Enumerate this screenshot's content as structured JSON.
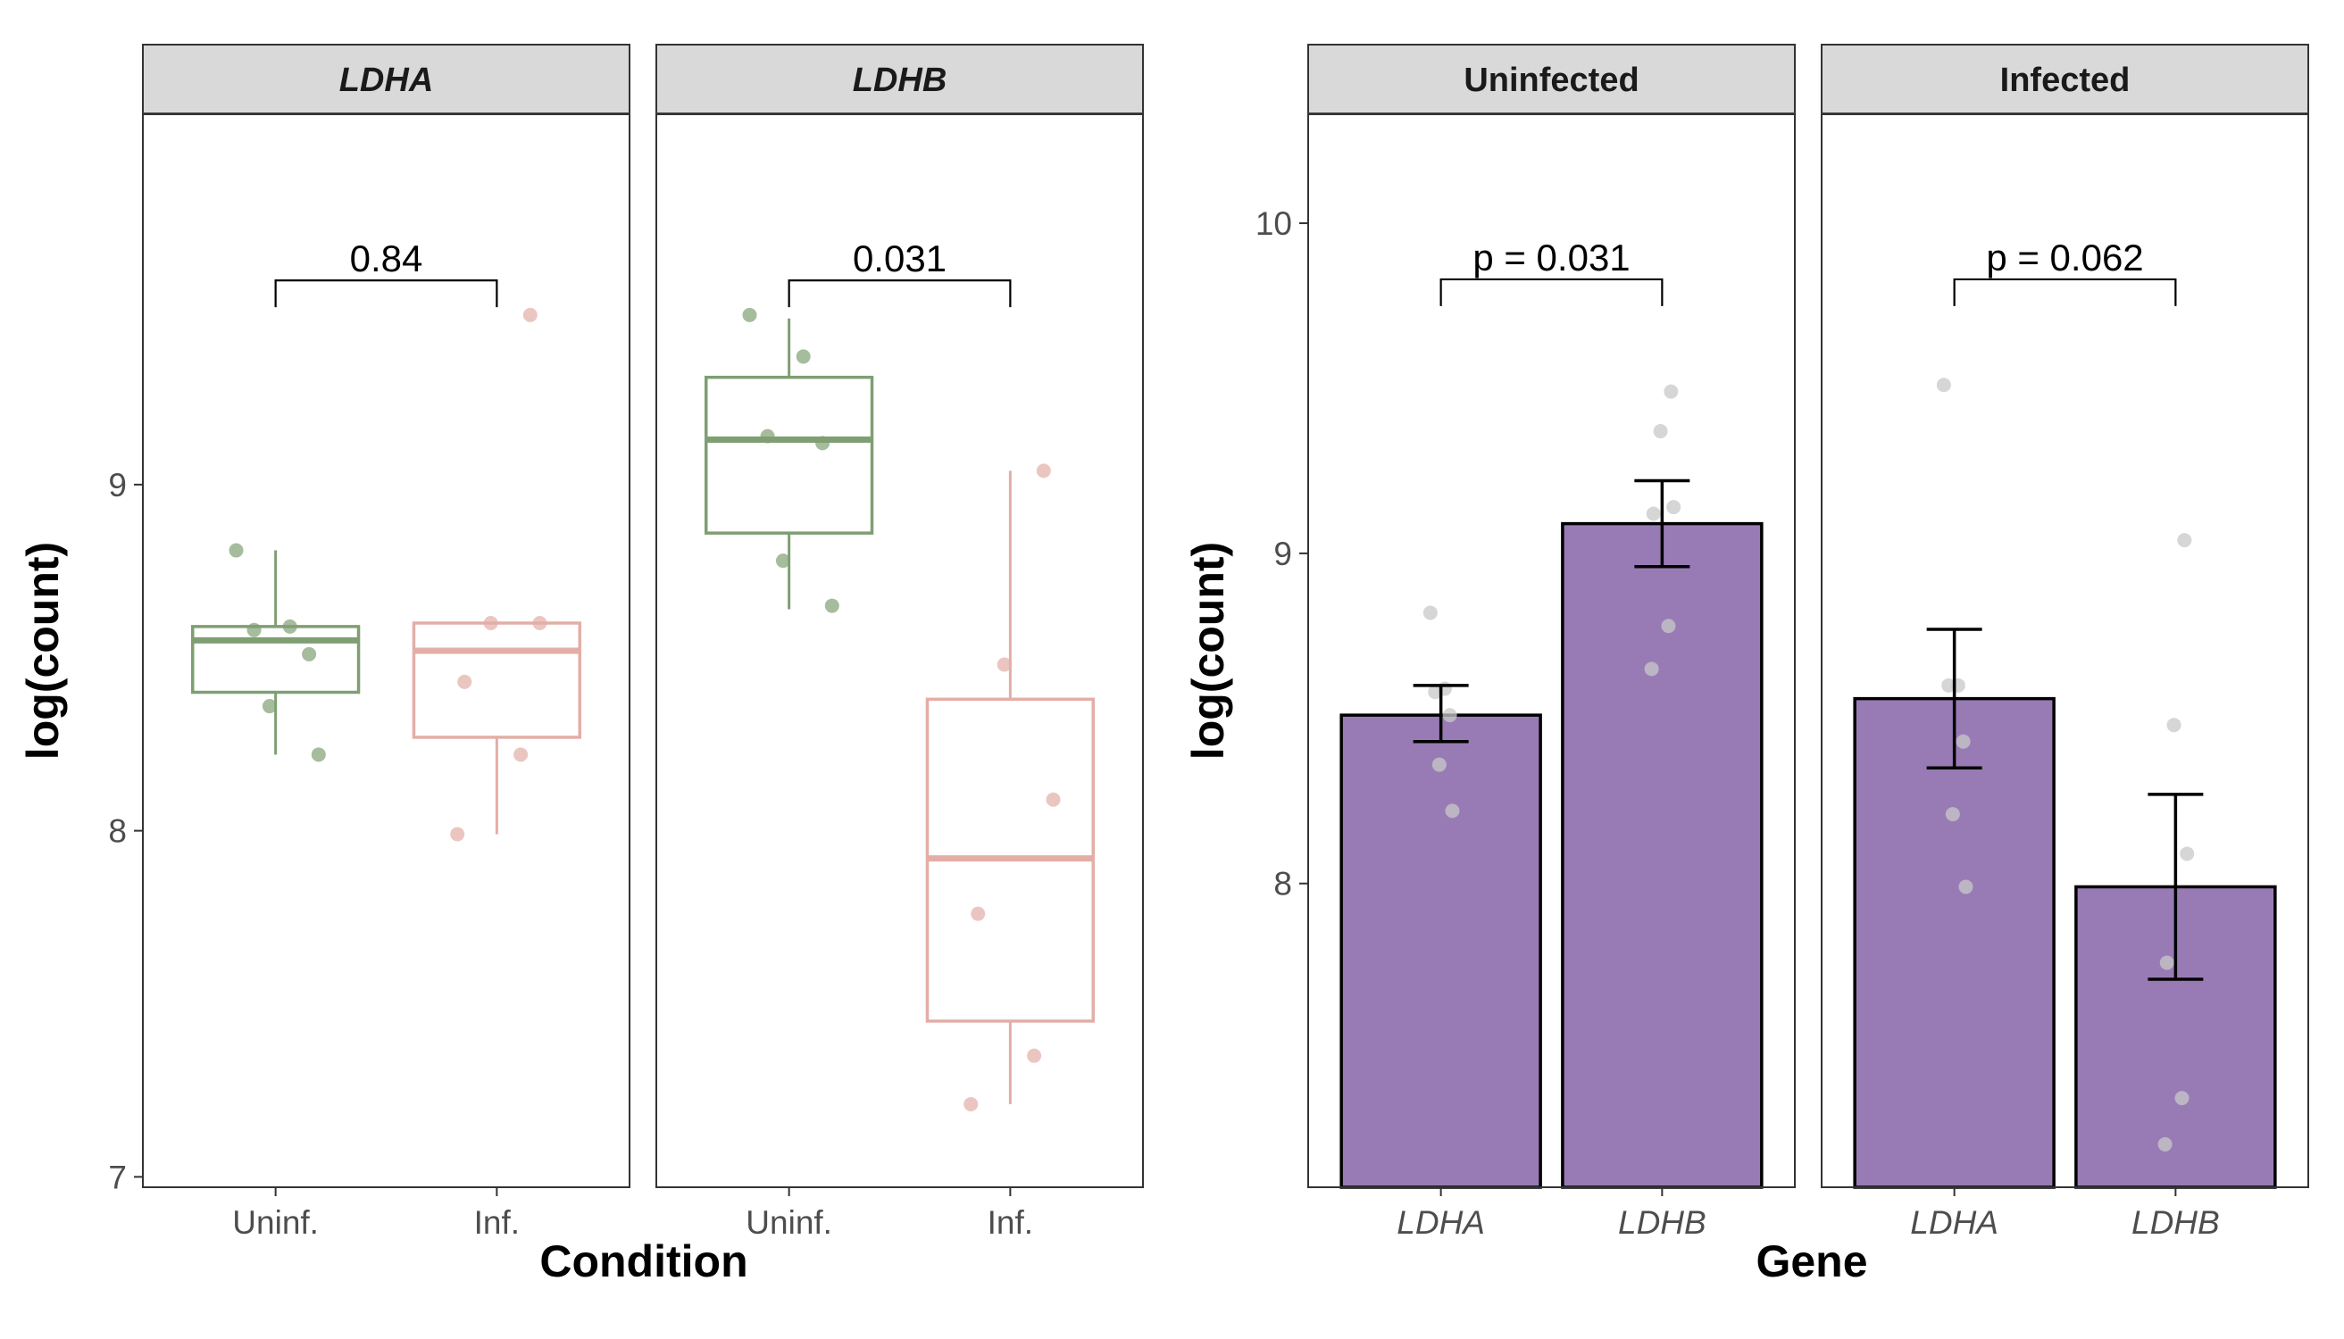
{
  "colors": {
    "uninfected": "#7f9f73",
    "infected": "#e3aea6",
    "bar_fill": "#987bb5",
    "bar_points": "#c8c8c8",
    "strip_bg": "#d9d9d9"
  },
  "chart_data": [
    {
      "type": "box",
      "ylabel": "log(count)",
      "xlabel": "Condition",
      "ylim": [
        6.97,
        10.07
      ],
      "yticks": [
        7,
        8,
        9
      ],
      "categories": [
        "Uninf.",
        "Inf."
      ],
      "category_colors": [
        "#7f9f73",
        "#e3aea6"
      ],
      "legend": "none",
      "grid": false,
      "panels": [
        {
          "title": "LDHA",
          "comparison": "0.84",
          "bracket_y": 9.59,
          "boxes": [
            {
              "group": "Uninf.",
              "whisker_low": 8.22,
              "q1": 8.4,
              "median": 8.55,
              "q3": 8.59,
              "whisker_high": 8.81
            },
            {
              "group": "Inf.",
              "whisker_low": 7.99,
              "q1": 8.27,
              "median": 8.52,
              "q3": 8.6,
              "whisker_high": 8.6
            }
          ],
          "points": [
            {
              "group": "Uninf.",
              "y": [
                8.81,
                8.59,
                8.58,
                8.51,
                8.36,
                8.22
              ]
            },
            {
              "group": "Inf.",
              "y": [
                9.49,
                8.6,
                8.6,
                8.43,
                8.22,
                7.99
              ]
            }
          ]
        },
        {
          "title": "LDHB",
          "comparison": "0.031",
          "bracket_y": 9.59,
          "boxes": [
            {
              "group": "Uninf.",
              "whisker_low": 8.64,
              "q1": 8.86,
              "median": 9.13,
              "q3": 9.31,
              "whisker_high": 9.48
            },
            {
              "group": "Inf.",
              "whisker_low": 7.21,
              "q1": 7.45,
              "median": 7.92,
              "q3": 8.38,
              "whisker_high": 9.04
            }
          ],
          "points": [
            {
              "group": "Uninf.",
              "y": [
                9.49,
                9.37,
                9.14,
                9.12,
                8.78,
                8.65
              ]
            },
            {
              "group": "Inf.",
              "y": [
                9.04,
                8.48,
                8.09,
                7.76,
                7.35,
                7.21
              ]
            }
          ]
        }
      ]
    },
    {
      "type": "bar",
      "ylabel": "log(count)",
      "xlabel": "Gene",
      "ylim": [
        7.08,
        10.33
      ],
      "yticks": [
        8,
        9,
        10
      ],
      "categories": [
        "LDHA",
        "LDHB"
      ],
      "legend": "none",
      "grid": false,
      "panels": [
        {
          "title": "Uninfected",
          "comparison": "p = 0.031",
          "bracket_y": 9.83,
          "values": [
            8.51,
            9.09
          ],
          "error_low": [
            8.43,
            8.96
          ],
          "error_high": [
            8.6,
            9.22
          ],
          "points": [
            {
              "group": "LDHA",
              "y": [
                8.82,
                8.59,
                8.58,
                8.51,
                8.36,
                8.22
              ]
            },
            {
              "group": "LDHB",
              "y": [
                9.49,
                9.37,
                9.14,
                9.12,
                8.78,
                8.65
              ]
            }
          ]
        },
        {
          "title": "Infected",
          "comparison": "p = 0.062",
          "bracket_y": 9.83,
          "values": [
            8.56,
            7.99
          ],
          "error_low": [
            8.35,
            7.71
          ],
          "error_high": [
            8.77,
            8.27
          ],
          "points": [
            {
              "group": "LDHA",
              "y": [
                9.51,
                8.6,
                8.6,
                8.43,
                8.21,
                7.99
              ]
            },
            {
              "group": "LDHB",
              "y": [
                9.04,
                8.48,
                8.09,
                7.76,
                7.35,
                7.21
              ]
            }
          ]
        }
      ]
    }
  ]
}
